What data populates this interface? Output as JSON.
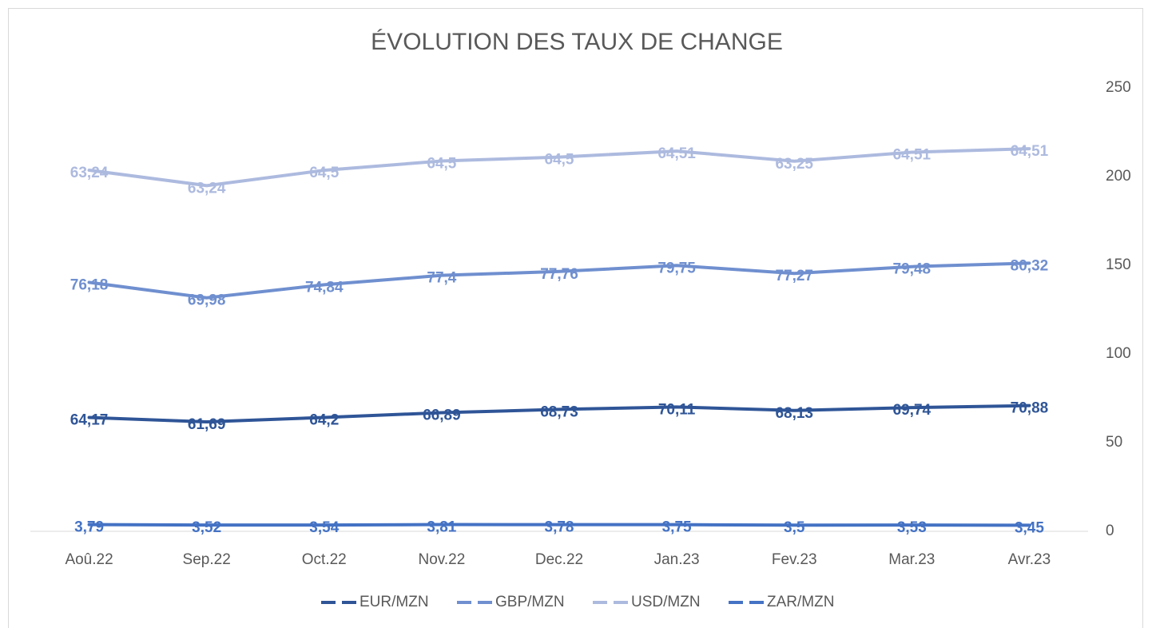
{
  "chart_data": {
    "type": "line",
    "stacked": true,
    "title": "ÉVOLUTION DES TAUX DE CHANGE",
    "categories": [
      "Aoû.22",
      "Sep.22",
      "Oct.22",
      "Nov.22",
      "Dec.22",
      "Jan.23",
      "Fev.23",
      "Mar.23",
      "Avr.23"
    ],
    "series": [
      {
        "name": "EUR/MZN",
        "color": "#2f5597",
        "stacked": true,
        "values": [
          64.17,
          61.69,
          64.2,
          66.89,
          68.73,
          70.11,
          68.13,
          69.74,
          70.88
        ],
        "value_labels": [
          "64,17",
          "61,69",
          "64,2",
          "66,89",
          "68,73",
          "70,11",
          "68,13",
          "69,74",
          "70,88"
        ]
      },
      {
        "name": "GBP/MZN",
        "color": "#6f8fcf",
        "stacked": true,
        "values": [
          76.18,
          69.98,
          74.84,
          77.4,
          77.76,
          79.75,
          77.27,
          79.48,
          80.32
        ],
        "value_labels": [
          "76,18",
          "69,98",
          "74,84",
          "77,4",
          "77,76",
          "79,75",
          "77,27",
          "79,48",
          "80,32"
        ]
      },
      {
        "name": "USD/MZN",
        "color": "#adbadf",
        "stacked": true,
        "values": [
          63.24,
          63.24,
          64.5,
          64.5,
          64.5,
          64.51,
          63.25,
          64.51,
          64.51
        ],
        "value_labels": [
          "63,24",
          "63,24",
          "64,5",
          "64,5",
          "64,5",
          "64,51",
          "63,25",
          "64,51",
          "64,51"
        ]
      },
      {
        "name": "ZAR/MZN",
        "color": "#4472c4",
        "stacked": false,
        "values": [
          3.79,
          3.52,
          3.54,
          3.81,
          3.78,
          3.75,
          3.5,
          3.53,
          3.45
        ],
        "value_labels": [
          "3,79",
          "3,52",
          "3,54",
          "3,81",
          "3,78",
          "3,75",
          "3,5",
          "3,53",
          "3,45"
        ]
      }
    ],
    "ylim": [
      0,
      250
    ],
    "yticks": [
      0,
      50,
      100,
      150,
      200,
      250
    ],
    "y_axis_side": "right",
    "grid": false,
    "legend": "bottom"
  }
}
